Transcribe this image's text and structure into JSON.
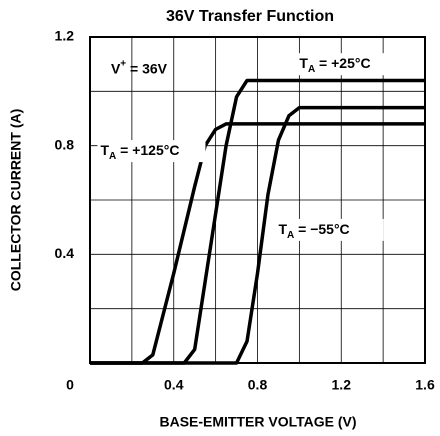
{
  "chart_data": {
    "type": "line",
    "title": "36V Transfer Function",
    "xlabel": "BASE-EMITTER VOLTAGE (V)",
    "ylabel": "COLLECTOR CURRENT (A)",
    "xlim": [
      0,
      1.6
    ],
    "ylim": [
      0,
      1.2
    ],
    "xticks": [
      0,
      0.4,
      0.8,
      1.2,
      1.6
    ],
    "yticks": [
      0.4,
      0.8,
      1.2
    ],
    "xminor": [
      0.2,
      0.6,
      1.0,
      1.4
    ],
    "yminor": [
      0.2,
      0.6,
      1.0
    ],
    "grid": true,
    "annotations": [
      {
        "base": "V",
        "sup": "+",
        "rest": " = 36V",
        "at": [
          0.1,
          1.08
        ]
      }
    ],
    "series": [
      {
        "label": {
          "base": "T",
          "sub": "A",
          "rest": " = +125°C",
          "at": [
            0.05,
            0.78
          ]
        },
        "color": "#000000",
        "x": [
          0,
          0.25,
          0.3,
          0.4,
          0.5,
          0.55,
          0.6,
          0.65,
          1.6
        ],
        "values": [
          0,
          0,
          0.03,
          0.33,
          0.65,
          0.8,
          0.86,
          0.88,
          0.88
        ]
      },
      {
        "label": {
          "base": "T",
          "sub": "A",
          "rest": " = +25°C",
          "at": [
            1.0,
            1.1
          ]
        },
        "color": "#000000",
        "x": [
          0,
          0.45,
          0.5,
          0.55,
          0.6,
          0.65,
          0.7,
          0.75,
          1.6
        ],
        "values": [
          0,
          0,
          0.05,
          0.3,
          0.55,
          0.8,
          0.98,
          1.04,
          1.04
        ]
      },
      {
        "label": {
          "base": "T",
          "sub": "A",
          "rest": " = −55°C",
          "at": [
            0.9,
            0.49
          ]
        },
        "color": "#000000",
        "x": [
          0,
          0.7,
          0.75,
          0.8,
          0.85,
          0.9,
          0.95,
          1.0,
          1.6
        ],
        "values": [
          0,
          0,
          0.08,
          0.33,
          0.62,
          0.82,
          0.91,
          0.94,
          0.94
        ]
      }
    ]
  }
}
